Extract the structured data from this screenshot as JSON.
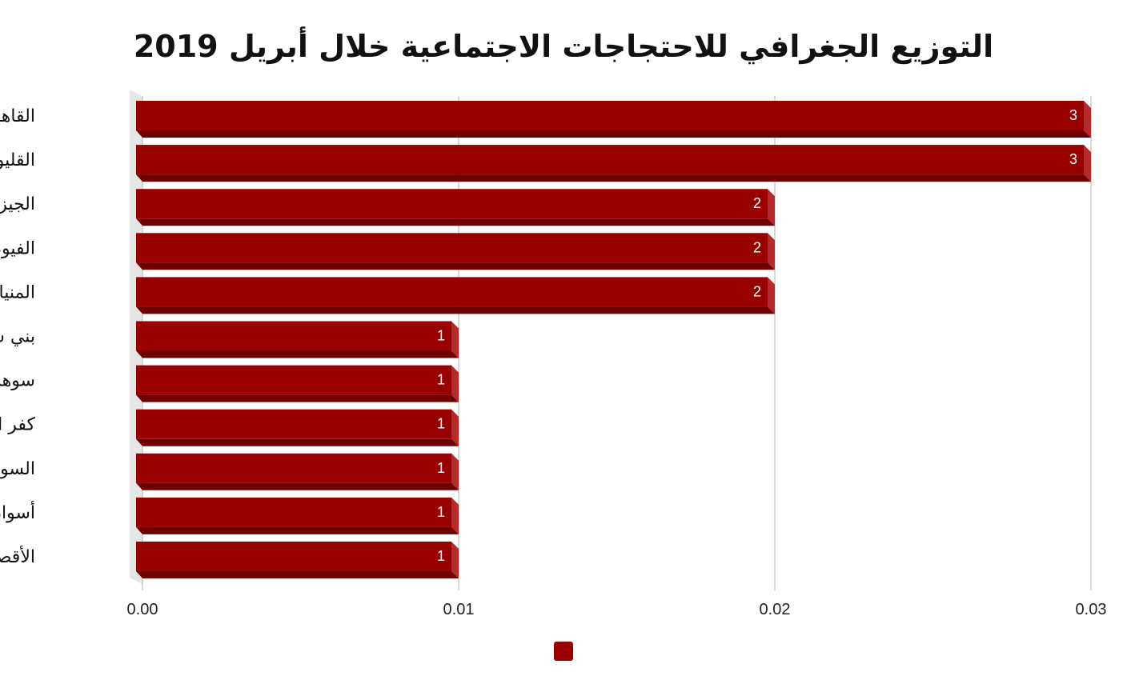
{
  "chart_data": {
    "type": "bar",
    "orientation": "horizontal",
    "title": "التوزيع الجغرافي للاحتجاجات الاجتماعية خلال أبريل 2019",
    "categories": [
      "القاهرة",
      "القليوبية",
      "الجيزة",
      "الفيوم",
      "المنيا",
      "بني سويف",
      "سوهاج",
      "كفر الشيخ",
      "السويس",
      "أسوان",
      "الأقصر"
    ],
    "values": [
      0.03,
      0.03,
      0.02,
      0.02,
      0.02,
      0.01,
      0.01,
      0.01,
      0.01,
      0.01,
      0.01
    ],
    "data_labels": [
      "3",
      "3",
      "2",
      "2",
      "2",
      "1",
      "1",
      "1",
      "1",
      "1",
      "1"
    ],
    "x_ticks": [
      "0.00",
      "0.01",
      "0.02",
      "0.03"
    ],
    "xlim": [
      0,
      0.03
    ],
    "xlabel": "",
    "ylabel": "",
    "grid": "vertical",
    "legend": {
      "position": "bottom-center",
      "entries": [
        ""
      ]
    },
    "colors": {
      "bar": "#990000",
      "bar_side": "#6e0000",
      "bar_top": "#b52a2a",
      "grid": "#cccccc",
      "wall": "#e6e6e6"
    }
  }
}
